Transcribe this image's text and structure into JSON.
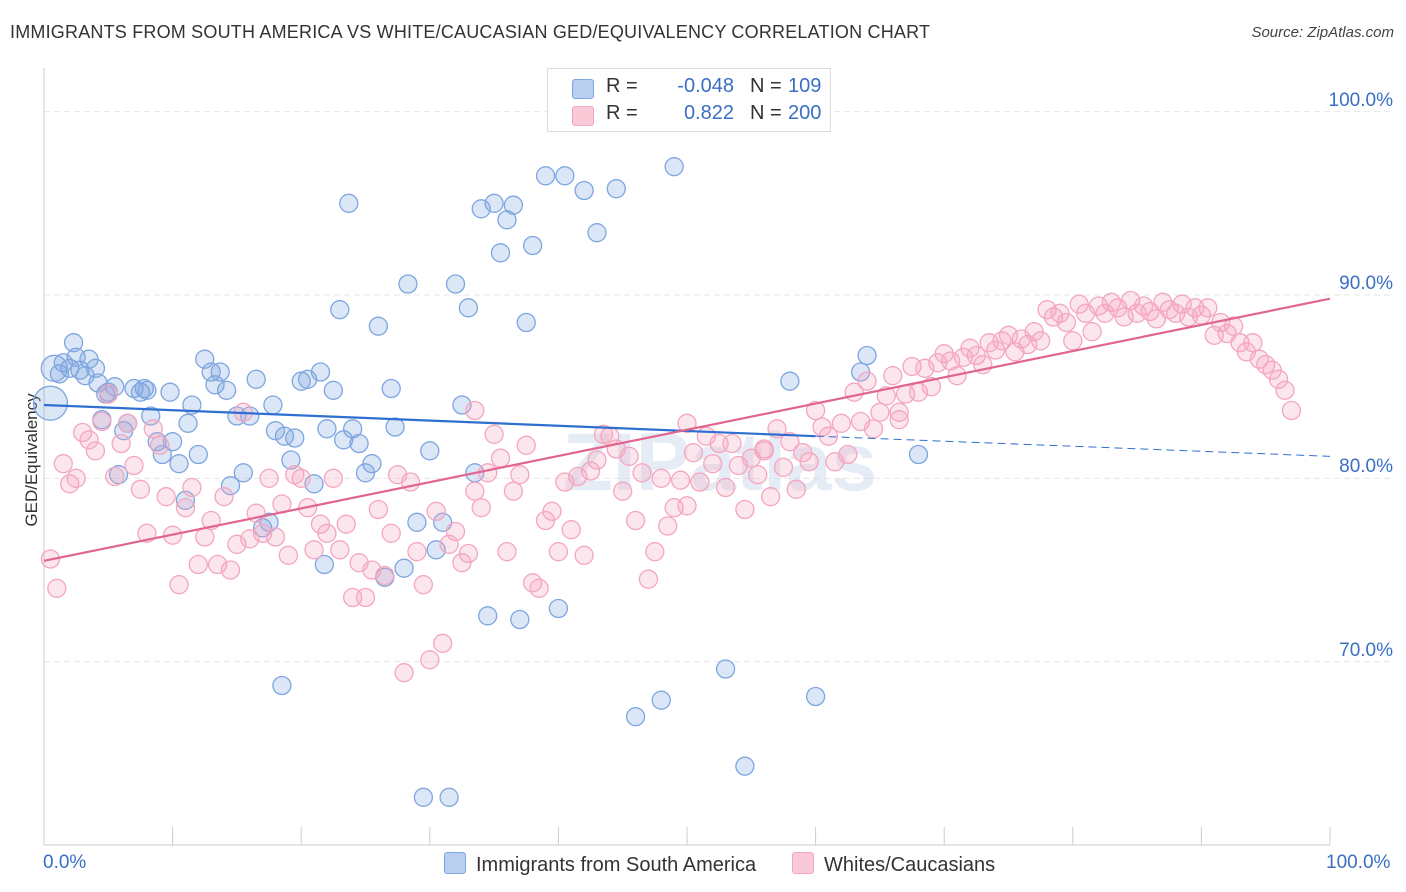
{
  "chart_data": {
    "type": "scatter",
    "title": "IMMIGRANTS FROM SOUTH AMERICA VS WHITE/CAUCASIAN GED/EQUIVALENCY CORRELATION CHART",
    "source": "Source: ZipAtlas.com",
    "ylabel": "GED/Equivalency",
    "xlim": [
      0,
      100
    ],
    "ylim": [
      60,
      102
    ],
    "x_tick_labels": [
      "0.0%",
      "100.0%"
    ],
    "y_ticks": [
      70,
      80,
      90,
      100
    ],
    "y_tick_labels": [
      "70.0%",
      "80.0%",
      "90.0%",
      "100.0%"
    ],
    "grid": true,
    "legend_top": {
      "rows": [
        {
          "r_label": "R =",
          "r_value": "-0.048",
          "n_label": "N =",
          "n_value": "109"
        },
        {
          "r_label": "R =",
          "r_value": "0.822",
          "n_label": "N =",
          "n_value": "200"
        }
      ]
    },
    "series": [
      {
        "name": "Immigrants from South America",
        "color": "#7ea6e0",
        "line_color": "#2e6fd1",
        "trend": {
          "x": [
            0,
            60
          ],
          "y": [
            84.0,
            82.3
          ]
        },
        "trend_dashed": {
          "x": [
            60,
            100
          ],
          "y": [
            82.3,
            81.2
          ]
        },
        "points": [
          [
            0.5,
            84.1
          ],
          [
            0.8,
            86.0
          ],
          [
            1.2,
            85.7
          ],
          [
            1.5,
            86.3
          ],
          [
            2.0,
            86.0
          ],
          [
            2.3,
            87.4
          ],
          [
            2.5,
            86.6
          ],
          [
            2.8,
            85.9
          ],
          [
            3.2,
            85.6
          ],
          [
            3.5,
            86.5
          ],
          [
            4.0,
            86.0
          ],
          [
            4.2,
            85.2
          ],
          [
            4.5,
            83.2
          ],
          [
            4.8,
            84.6
          ],
          [
            5.0,
            84.7
          ],
          [
            5.5,
            85.0
          ],
          [
            5.8,
            80.2
          ],
          [
            6.2,
            82.6
          ],
          [
            6.5,
            83.0
          ],
          [
            7.0,
            84.9
          ],
          [
            7.5,
            84.7
          ],
          [
            7.8,
            84.9
          ],
          [
            8.0,
            84.8
          ],
          [
            8.3,
            83.4
          ],
          [
            8.8,
            82.0
          ],
          [
            9.2,
            81.3
          ],
          [
            9.8,
            84.7
          ],
          [
            10.0,
            82.0
          ],
          [
            10.5,
            80.8
          ],
          [
            11.0,
            78.8
          ],
          [
            11.2,
            83.0
          ],
          [
            11.5,
            84.0
          ],
          [
            12.0,
            81.3
          ],
          [
            12.5,
            86.5
          ],
          [
            13.0,
            85.8
          ],
          [
            13.3,
            85.1
          ],
          [
            13.7,
            85.8
          ],
          [
            14.2,
            84.8
          ],
          [
            14.5,
            79.6
          ],
          [
            15.0,
            83.4
          ],
          [
            15.5,
            80.3
          ],
          [
            16.0,
            83.4
          ],
          [
            16.5,
            85.4
          ],
          [
            17.0,
            77.3
          ],
          [
            17.5,
            77.6
          ],
          [
            17.8,
            84.0
          ],
          [
            18.0,
            82.6
          ],
          [
            18.5,
            68.7
          ],
          [
            18.7,
            82.3
          ],
          [
            19.2,
            81.0
          ],
          [
            19.5,
            82.2
          ],
          [
            20.0,
            85.3
          ],
          [
            20.5,
            85.4
          ],
          [
            21.0,
            79.7
          ],
          [
            21.5,
            85.8
          ],
          [
            21.8,
            75.3
          ],
          [
            22.0,
            82.7
          ],
          [
            22.5,
            84.8
          ],
          [
            23.0,
            89.2
          ],
          [
            23.3,
            82.1
          ],
          [
            23.7,
            95.0
          ],
          [
            24.0,
            82.7
          ],
          [
            24.5,
            81.9
          ],
          [
            25.0,
            80.3
          ],
          [
            25.5,
            80.8
          ],
          [
            26.0,
            88.3
          ],
          [
            26.5,
            74.6
          ],
          [
            27.0,
            84.9
          ],
          [
            27.3,
            82.8
          ],
          [
            28.0,
            75.1
          ],
          [
            28.3,
            90.6
          ],
          [
            29.0,
            77.6
          ],
          [
            29.5,
            62.6
          ],
          [
            30.0,
            81.5
          ],
          [
            30.5,
            76.1
          ],
          [
            31.0,
            77.6
          ],
          [
            31.5,
            62.6
          ],
          [
            32.0,
            90.6
          ],
          [
            32.5,
            84.0
          ],
          [
            33.0,
            89.3
          ],
          [
            33.5,
            80.3
          ],
          [
            34.0,
            94.7
          ],
          [
            34.5,
            72.5
          ],
          [
            35.0,
            95.0
          ],
          [
            35.5,
            92.3
          ],
          [
            36.0,
            94.1
          ],
          [
            36.5,
            94.9
          ],
          [
            37.0,
            72.3
          ],
          [
            37.5,
            88.5
          ],
          [
            38.0,
            92.7
          ],
          [
            39.0,
            96.5
          ],
          [
            40.0,
            72.9
          ],
          [
            40.5,
            96.5
          ],
          [
            42.0,
            95.7
          ],
          [
            43.0,
            93.4
          ],
          [
            44.5,
            95.8
          ],
          [
            46.0,
            67.0
          ],
          [
            47.0,
            100.0
          ],
          [
            48.0,
            67.9
          ],
          [
            49.0,
            97.0
          ],
          [
            53.0,
            69.6
          ],
          [
            54.5,
            64.3
          ],
          [
            58.0,
            85.3
          ],
          [
            60.0,
            68.1
          ],
          [
            63.5,
            85.8
          ],
          [
            64.0,
            86.7
          ],
          [
            68.0,
            81.3
          ]
        ]
      },
      {
        "name": "Whites/Caucasians",
        "color": "#f4a6bf",
        "line_color": "#e0668f",
        "trend": {
          "x": [
            0,
            100
          ],
          "y": [
            75.5,
            89.8
          ]
        },
        "points": [
          [
            0.5,
            75.6
          ],
          [
            1.0,
            74.0
          ],
          [
            1.5,
            80.8
          ],
          [
            2.0,
            79.7
          ],
          [
            2.5,
            80.0
          ],
          [
            3.0,
            82.5
          ],
          [
            3.5,
            82.1
          ],
          [
            4.0,
            81.5
          ],
          [
            4.5,
            83.1
          ],
          [
            5.0,
            84.6
          ],
          [
            5.5,
            80.1
          ],
          [
            6.0,
            81.9
          ],
          [
            6.5,
            83.0
          ],
          [
            7.0,
            80.7
          ],
          [
            7.5,
            79.4
          ],
          [
            8.0,
            77.0
          ],
          [
            8.5,
            82.7
          ],
          [
            9.0,
            81.8
          ],
          [
            9.5,
            79.0
          ],
          [
            10.0,
            76.9
          ],
          [
            10.5,
            74.2
          ],
          [
            11.0,
            78.4
          ],
          [
            11.5,
            79.5
          ],
          [
            12.0,
            75.3
          ],
          [
            12.5,
            76.8
          ],
          [
            13.0,
            77.7
          ],
          [
            13.5,
            75.3
          ],
          [
            14.0,
            79.0
          ],
          [
            14.5,
            75.0
          ],
          [
            15.0,
            76.4
          ],
          [
            15.5,
            83.6
          ],
          [
            16.0,
            76.7
          ],
          [
            16.5,
            78.1
          ],
          [
            17.0,
            77.0
          ],
          [
            17.5,
            80.0
          ],
          [
            18.0,
            76.8
          ],
          [
            18.5,
            78.6
          ],
          [
            19.0,
            75.8
          ],
          [
            19.5,
            80.2
          ],
          [
            20.0,
            80.0
          ],
          [
            20.5,
            78.4
          ],
          [
            21.0,
            76.1
          ],
          [
            21.5,
            77.5
          ],
          [
            22.0,
            77.0
          ],
          [
            22.5,
            80.0
          ],
          [
            23.0,
            76.1
          ],
          [
            23.5,
            77.5
          ],
          [
            24.0,
            73.5
          ],
          [
            24.5,
            75.4
          ],
          [
            25.0,
            73.5
          ],
          [
            25.5,
            75.0
          ],
          [
            26.0,
            78.3
          ],
          [
            26.5,
            74.7
          ],
          [
            27.0,
            77.0
          ],
          [
            27.5,
            80.2
          ],
          [
            28.0,
            69.4
          ],
          [
            28.5,
            79.8
          ],
          [
            29.0,
            76.0
          ],
          [
            29.5,
            74.2
          ],
          [
            30.0,
            70.1
          ],
          [
            30.5,
            78.2
          ],
          [
            31.0,
            71.0
          ],
          [
            31.5,
            76.4
          ],
          [
            32.0,
            77.1
          ],
          [
            32.5,
            75.4
          ],
          [
            33.0,
            75.9
          ],
          [
            33.5,
            79.3
          ],
          [
            34.0,
            78.4
          ],
          [
            34.5,
            80.3
          ],
          [
            35.0,
            82.4
          ],
          [
            35.5,
            81.1
          ],
          [
            36.0,
            76.0
          ],
          [
            36.5,
            79.3
          ],
          [
            37.0,
            80.2
          ],
          [
            37.5,
            81.8
          ],
          [
            38.0,
            74.3
          ],
          [
            38.5,
            74.0
          ],
          [
            39.0,
            77.7
          ],
          [
            39.5,
            78.2
          ],
          [
            40.0,
            76.0
          ],
          [
            40.5,
            79.8
          ],
          [
            41.0,
            77.2
          ],
          [
            41.5,
            80.1
          ],
          [
            42.0,
            75.8
          ],
          [
            42.5,
            80.4
          ],
          [
            43.0,
            81.0
          ],
          [
            43.5,
            82.4
          ],
          [
            44.0,
            82.3
          ],
          [
            44.5,
            81.6
          ],
          [
            45.0,
            79.3
          ],
          [
            45.5,
            81.2
          ],
          [
            46.0,
            77.7
          ],
          [
            46.5,
            80.3
          ],
          [
            47.0,
            74.5
          ],
          [
            47.5,
            76.0
          ],
          [
            48.0,
            80.0
          ],
          [
            48.5,
            77.4
          ],
          [
            49.0,
            78.4
          ],
          [
            49.5,
            79.9
          ],
          [
            50.0,
            78.5
          ],
          [
            50.5,
            81.4
          ],
          [
            51.0,
            79.8
          ],
          [
            51.5,
            82.3
          ],
          [
            52.0,
            80.8
          ],
          [
            52.5,
            81.9
          ],
          [
            53.0,
            79.5
          ],
          [
            53.5,
            81.9
          ],
          [
            54.0,
            80.7
          ],
          [
            54.5,
            78.3
          ],
          [
            55.0,
            81.1
          ],
          [
            55.5,
            80.2
          ],
          [
            56.0,
            81.6
          ],
          [
            56.5,
            79.0
          ],
          [
            57.0,
            82.7
          ],
          [
            57.5,
            80.6
          ],
          [
            58.0,
            82.0
          ],
          [
            58.5,
            79.4
          ],
          [
            59.0,
            81.4
          ],
          [
            59.5,
            80.9
          ],
          [
            60.0,
            83.7
          ],
          [
            60.5,
            82.8
          ],
          [
            61.0,
            82.3
          ],
          [
            61.5,
            80.9
          ],
          [
            62.0,
            83.0
          ],
          [
            62.5,
            81.3
          ],
          [
            63.0,
            84.7
          ],
          [
            63.5,
            83.1
          ],
          [
            64.0,
            85.3
          ],
          [
            64.5,
            82.7
          ],
          [
            65.0,
            83.6
          ],
          [
            65.5,
            84.5
          ],
          [
            66.0,
            85.6
          ],
          [
            66.5,
            83.2
          ],
          [
            67.0,
            84.6
          ],
          [
            67.5,
            86.1
          ],
          [
            68.0,
            84.7
          ],
          [
            68.5,
            86.0
          ],
          [
            69.0,
            85.0
          ],
          [
            69.5,
            86.3
          ],
          [
            70.0,
            86.8
          ],
          [
            70.5,
            86.4
          ],
          [
            71.0,
            85.6
          ],
          [
            71.5,
            86.6
          ],
          [
            72.0,
            87.1
          ],
          [
            72.5,
            86.7
          ],
          [
            73.0,
            86.2
          ],
          [
            73.5,
            87.4
          ],
          [
            74.0,
            87.0
          ],
          [
            74.5,
            87.5
          ],
          [
            75.0,
            87.8
          ],
          [
            75.5,
            86.9
          ],
          [
            76.0,
            87.6
          ],
          [
            76.5,
            87.3
          ],
          [
            77.0,
            88.0
          ],
          [
            77.5,
            87.5
          ],
          [
            78.0,
            89.2
          ],
          [
            78.5,
            88.8
          ],
          [
            79.0,
            89.0
          ],
          [
            79.5,
            88.5
          ],
          [
            80.0,
            87.5
          ],
          [
            80.5,
            89.5
          ],
          [
            81.0,
            89.0
          ],
          [
            81.5,
            88.0
          ],
          [
            82.0,
            89.4
          ],
          [
            82.5,
            89.0
          ],
          [
            83.0,
            89.6
          ],
          [
            83.5,
            89.3
          ],
          [
            84.0,
            88.8
          ],
          [
            84.5,
            89.7
          ],
          [
            85.0,
            89.0
          ],
          [
            85.5,
            89.4
          ],
          [
            86.0,
            89.1
          ],
          [
            86.5,
            88.7
          ],
          [
            87.0,
            89.6
          ],
          [
            87.5,
            89.2
          ],
          [
            88.0,
            89.0
          ],
          [
            88.5,
            89.5
          ],
          [
            89.0,
            88.8
          ],
          [
            89.5,
            89.3
          ],
          [
            90.0,
            88.9
          ],
          [
            90.5,
            89.3
          ],
          [
            91.0,
            87.8
          ],
          [
            91.5,
            88.5
          ],
          [
            92.0,
            87.9
          ],
          [
            92.5,
            88.3
          ],
          [
            93.0,
            87.4
          ],
          [
            93.5,
            86.9
          ],
          [
            94.0,
            87.4
          ],
          [
            94.5,
            86.5
          ],
          [
            95.0,
            86.2
          ],
          [
            95.5,
            85.9
          ],
          [
            96.0,
            85.4
          ],
          [
            96.5,
            84.8
          ],
          [
            97.0,
            83.7
          ],
          [
            56.0,
            81.5
          ],
          [
            50.0,
            83.0
          ],
          [
            33.5,
            83.7
          ],
          [
            66.5,
            83.6
          ]
        ]
      }
    ]
  },
  "watermark": "ZIPatlas"
}
